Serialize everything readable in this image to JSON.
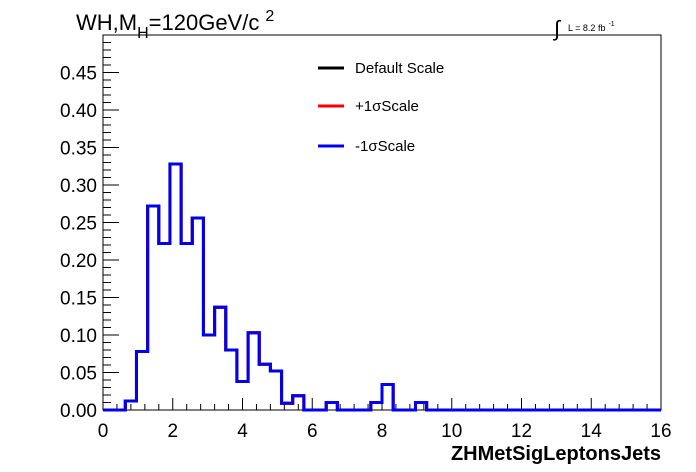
{
  "chart_data": {
    "type": "histogram",
    "title": {
      "main": "WH,M",
      "sub": "H",
      "tail": "=120GeV/c",
      "sup": "2"
    },
    "lumi": {
      "integral": "∫",
      "label": "L = 8.2 fb",
      "sup": "-1"
    },
    "xlabel": "ZHMetSigLeptonsJets",
    "ylabel": "",
    "xlim": [
      0,
      16
    ],
    "ylim": [
      0,
      0.5
    ],
    "x_ticks": [
      0,
      2,
      4,
      6,
      8,
      10,
      12,
      14,
      16
    ],
    "y_ticks": [
      0.0,
      0.05,
      0.1,
      0.15,
      0.2,
      0.25,
      0.3,
      0.35,
      0.4,
      0.45
    ],
    "x_tick_labels": [
      "0",
      "2",
      "4",
      "6",
      "8",
      "10",
      "12",
      "14",
      "16"
    ],
    "y_tick_labels": [
      "0.00",
      "0.05",
      "0.10",
      "0.15",
      "0.20",
      "0.25",
      "0.30",
      "0.35",
      "0.40",
      "0.45"
    ],
    "bin_width": 0.32,
    "bin_start": 0,
    "series": [
      {
        "name": "Default Scale",
        "color": "#000000",
        "values": [
          0,
          0,
          0.012,
          0.078,
          0.272,
          0.222,
          0.328,
          0.222,
          0.256,
          0.1,
          0.137,
          0.08,
          0.038,
          0.103,
          0.061,
          0.052,
          0.009,
          0.019,
          0,
          0,
          0.01,
          0,
          0,
          0,
          0.01,
          0.034,
          0,
          0,
          0.01,
          0,
          0,
          0,
          0,
          0,
          0,
          0,
          0,
          0,
          0,
          0,
          0,
          0,
          0,
          0,
          0,
          0,
          0,
          0,
          0,
          0
        ]
      },
      {
        "name": "+1σScale",
        "color": "#ff0000",
        "values": [
          0,
          0,
          0.012,
          0.078,
          0.272,
          0.222,
          0.328,
          0.222,
          0.256,
          0.1,
          0.137,
          0.08,
          0.038,
          0.103,
          0.061,
          0.052,
          0.009,
          0.019,
          0,
          0,
          0.01,
          0,
          0,
          0,
          0.01,
          0.034,
          0,
          0,
          0.01,
          0,
          0,
          0,
          0,
          0,
          0,
          0,
          0,
          0,
          0,
          0,
          0,
          0,
          0,
          0,
          0,
          0,
          0,
          0,
          0,
          0
        ]
      },
      {
        "name": "-1σScale",
        "color": "#0000ee",
        "values": [
          0,
          0,
          0.012,
          0.078,
          0.272,
          0.222,
          0.328,
          0.222,
          0.256,
          0.1,
          0.137,
          0.08,
          0.038,
          0.103,
          0.061,
          0.052,
          0.009,
          0.019,
          0,
          0,
          0.01,
          0,
          0,
          0,
          0.01,
          0.034,
          0,
          0,
          0.01,
          0,
          0,
          0,
          0,
          0,
          0,
          0,
          0,
          0,
          0,
          0,
          0,
          0,
          0,
          0,
          0,
          0,
          0,
          0,
          0,
          0
        ]
      }
    ],
    "legend": {
      "placement": "top-center",
      "entries": [
        "Default Scale",
        "+1σScale",
        "-1σScale"
      ]
    },
    "grid": false
  }
}
